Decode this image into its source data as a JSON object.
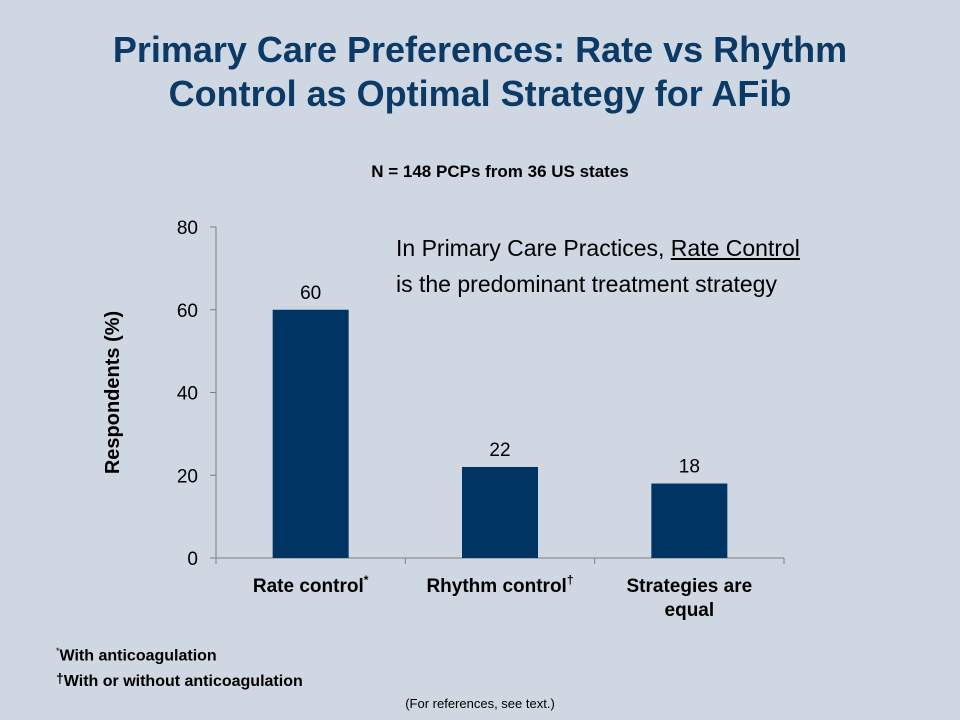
{
  "title_line1": "Primary Care Preferences: Rate vs Rhythm",
  "title_line2": "Control as Optimal Strategy for AFib",
  "callout": {
    "prefix": "In Primary Care Practices, ",
    "underlined": "Rate Control",
    "line2": "is the predominant treatment strategy"
  },
  "footnotes": {
    "note1_marker": "*",
    "note1_text": "With anticoagulation",
    "note2_marker": "†",
    "note2_text": "With or without anticoagulation"
  },
  "references": "(For references, see text.)",
  "colors": {
    "bar": "#003462",
    "title": "#0b3a66",
    "background": "#cfd7e2"
  },
  "chart_data": {
    "type": "bar",
    "title": "N = 148 PCPs from 36 US states",
    "ylabel": "Respondents (%)",
    "xlabel": "",
    "ylim": [
      0,
      80
    ],
    "yticks": [
      0,
      20,
      40,
      60,
      80
    ],
    "grid": false,
    "categories": [
      {
        "lines": [
          "Rate control"
        ],
        "mark": "*"
      },
      {
        "lines": [
          "Rhythm control"
        ],
        "mark": "†"
      },
      {
        "lines": [
          "Strategies are",
          "equal"
        ],
        "mark": ""
      }
    ],
    "values": [
      60,
      22,
      18
    ],
    "data_labels": [
      "60",
      "22",
      "18"
    ]
  }
}
